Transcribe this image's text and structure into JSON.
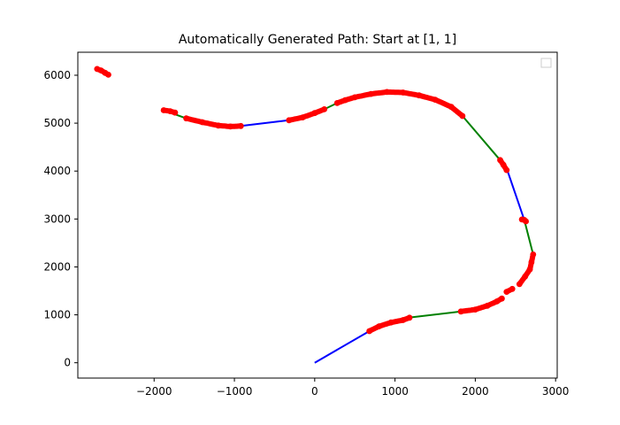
{
  "chart_data": {
    "type": "line",
    "title": "Automatically Generated Path: Start at [1, 1]",
    "xlabel": "",
    "ylabel": "",
    "xlim": [
      -2950,
      3020
    ],
    "ylim": [
      -320,
      6480
    ],
    "xticks": [
      -2000,
      -1000,
      0,
      1000,
      2000,
      3000
    ],
    "yticks": [
      0,
      1000,
      2000,
      3000,
      4000,
      5000,
      6000
    ],
    "xtick_labels": [
      "−2000",
      "−1000",
      "0",
      "1000",
      "2000",
      "3000"
    ],
    "ytick_labels": [
      "0",
      "1000",
      "2000",
      "3000",
      "4000",
      "5000",
      "6000"
    ],
    "grid": false,
    "legend": {
      "placement": "top-right",
      "entries": []
    },
    "colors": {
      "blue_segment": "#0000ff",
      "green_segment": "#008000",
      "arc_points": "#ff0000"
    },
    "straight_segments": [
      {
        "color": "blue",
        "x": [
          0,
          680
        ],
        "y": [
          0,
          660
        ]
      },
      {
        "color": "green",
        "x": [
          1170,
          1820
        ],
        "y": [
          940,
          1070
        ]
      },
      {
        "color": "green",
        "x": [
          2720,
          2610
        ],
        "y": [
          2260,
          2980
        ]
      },
      {
        "color": "blue",
        "x": [
          2610,
          2390
        ],
        "y": [
          2980,
          4060
        ]
      },
      {
        "color": "green",
        "x": [
          2310,
          1840
        ],
        "y": [
          4230,
          5150
        ]
      },
      {
        "color": "green",
        "x": [
          280,
          120
        ],
        "y": [
          5420,
          5290
        ]
      },
      {
        "color": "blue",
        "x": [
          -320,
          -920
        ],
        "y": [
          5060,
          4940
        ]
      },
      {
        "color": "green",
        "x": [
          -1600,
          -1880
        ],
        "y": [
          5100,
          5270
        ]
      },
      {
        "color": "green",
        "x": [
          -2570,
          -2710
        ],
        "y": [
          6010,
          6130
        ]
      }
    ],
    "arcs": [
      {
        "color": "red",
        "x": [
          680,
          800,
          950,
          1100,
          1180
        ],
        "y": [
          660,
          760,
          840,
          890,
          940
        ]
      },
      {
        "color": "red",
        "x": [
          1820,
          2000,
          2150,
          2270,
          2330
        ],
        "y": [
          1070,
          1110,
          1190,
          1280,
          1340
        ]
      },
      {
        "color": "red",
        "x": [
          2390,
          2460
        ],
        "y": [
          1480,
          1540
        ]
      },
      {
        "color": "red",
        "x": [
          2550,
          2620,
          2680,
          2700,
          2720
        ],
        "y": [
          1640,
          1800,
          1950,
          2100,
          2260
        ]
      },
      {
        "color": "red",
        "x": [
          2580,
          2610,
          2630
        ],
        "y": [
          2990,
          2980,
          2950
        ]
      },
      {
        "color": "red",
        "x": [
          2310,
          2350,
          2390
        ],
        "y": [
          4230,
          4130,
          4020
        ]
      },
      {
        "color": "red",
        "x": [
          1840,
          1700,
          1500,
          1300,
          1100,
          900,
          700,
          500,
          380,
          280
        ],
        "y": [
          5150,
          5340,
          5490,
          5580,
          5640,
          5650,
          5610,
          5540,
          5480,
          5420
        ]
      },
      {
        "color": "red",
        "x": [
          120,
          0,
          -150,
          -320
        ],
        "y": [
          5290,
          5210,
          5120,
          5060
        ]
      },
      {
        "color": "red",
        "x": [
          -920,
          -1050,
          -1200,
          -1400,
          -1600
        ],
        "y": [
          4940,
          4930,
          4950,
          5020,
          5100
        ]
      },
      {
        "color": "red",
        "x": [
          -1740,
          -1800,
          -1880
        ],
        "y": [
          5220,
          5250,
          5270
        ]
      },
      {
        "color": "red",
        "x": [
          -2570,
          -2610,
          -2660,
          -2710
        ],
        "y": [
          6010,
          6050,
          6100,
          6130
        ]
      }
    ]
  }
}
